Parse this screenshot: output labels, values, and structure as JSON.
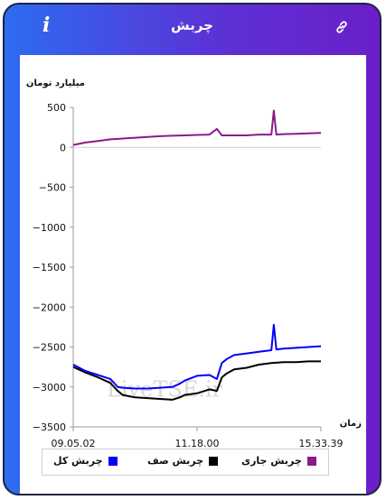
{
  "header": {
    "title": "چربش"
  },
  "chart_data": {
    "type": "line",
    "ylabel": "میلیارد تومان",
    "xlabel": "زمان",
    "ylim": [
      -3500,
      500
    ],
    "yticks": [
      500,
      0,
      -500,
      -1000,
      -1500,
      -2000,
      -2500,
      -3000,
      -3500
    ],
    "xticks": [
      "09.05.02",
      "11.18.00",
      "15.33.39"
    ],
    "watermark": "LiveTSE.ir",
    "grid": false,
    "legend_position": "bottom",
    "series": [
      {
        "name": "چربش جاری",
        "color": "#8b1a8b",
        "x": [
          0,
          0.05,
          0.1,
          0.15,
          0.2,
          0.25,
          0.3,
          0.35,
          0.4,
          0.45,
          0.5,
          0.55,
          0.58,
          0.6,
          0.65,
          0.7,
          0.75,
          0.8,
          0.81,
          0.82,
          0.85,
          0.9,
          0.95,
          1.0
        ],
        "y": [
          30,
          60,
          80,
          100,
          110,
          120,
          130,
          140,
          145,
          150,
          155,
          160,
          230,
          150,
          150,
          150,
          160,
          160,
          460,
          160,
          165,
          170,
          175,
          180
        ]
      },
      {
        "name": "چربش صف",
        "color": "#000000",
        "x": [
          0,
          0.05,
          0.1,
          0.15,
          0.18,
          0.2,
          0.25,
          0.3,
          0.35,
          0.4,
          0.43,
          0.45,
          0.5,
          0.55,
          0.58,
          0.6,
          0.62,
          0.65,
          0.7,
          0.75,
          0.8,
          0.85,
          0.9,
          0.95,
          1.0
        ],
        "y": [
          -2750,
          -2820,
          -2880,
          -2950,
          -3050,
          -3100,
          -3130,
          -3140,
          -3150,
          -3160,
          -3130,
          -3100,
          -3080,
          -3030,
          -3050,
          -2880,
          -2830,
          -2780,
          -2760,
          -2720,
          -2700,
          -2690,
          -2690,
          -2680,
          -2680
        ]
      },
      {
        "name": "چربش کل",
        "color": "#0000ff",
        "x": [
          0,
          0.05,
          0.1,
          0.15,
          0.18,
          0.2,
          0.25,
          0.3,
          0.35,
          0.4,
          0.43,
          0.45,
          0.5,
          0.55,
          0.58,
          0.6,
          0.62,
          0.65,
          0.7,
          0.75,
          0.8,
          0.81,
          0.82,
          0.85,
          0.9,
          0.95,
          1.0
        ],
        "y": [
          -2720,
          -2800,
          -2850,
          -2900,
          -3000,
          -3010,
          -3020,
          -3020,
          -3010,
          -3000,
          -2960,
          -2920,
          -2860,
          -2850,
          -2900,
          -2700,
          -2650,
          -2600,
          -2580,
          -2560,
          -2540,
          -2220,
          -2530,
          -2520,
          -2510,
          -2500,
          -2490
        ]
      }
    ]
  }
}
